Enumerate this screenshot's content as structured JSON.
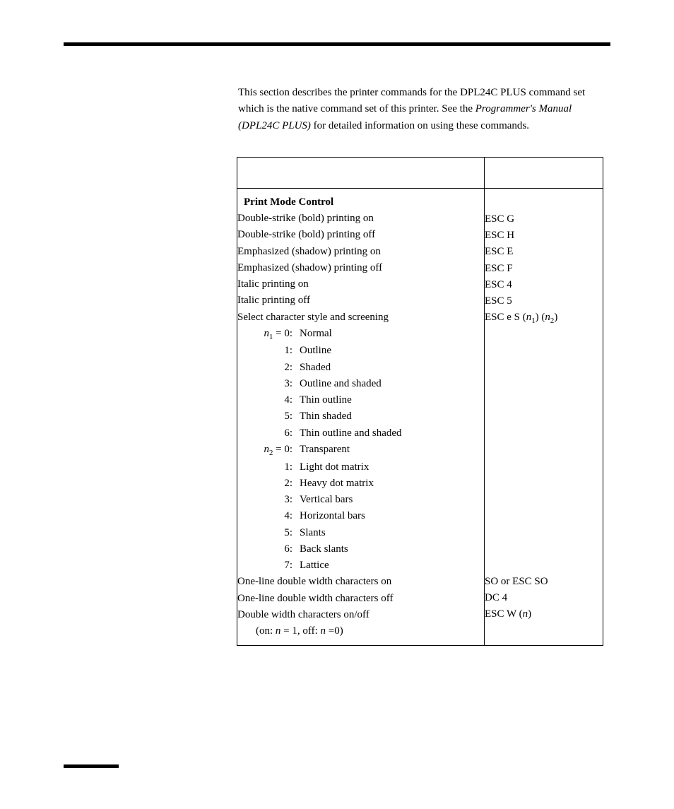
{
  "intro": {
    "part1": "This section describes the printer commands for the DPL24C PLUS command set which is the native command set of this printer.  See the ",
    "italic": "Programmer's Manual (DPL24C PLUS)",
    "part2": " for detailed information on using these commands."
  },
  "section_header": "Print Mode Control",
  "rows": [
    {
      "func": "Double-strike (bold) printing on",
      "cmd": "ESC G"
    },
    {
      "func": "Double-strike (bold) printing off",
      "cmd": "ESC H"
    },
    {
      "func": "Emphasized (shadow) printing on",
      "cmd": "ESC E"
    },
    {
      "func": "Emphasized (shadow) printing off",
      "cmd": "ESC F"
    },
    {
      "func": "Italic printing on",
      "cmd": "ESC 4"
    },
    {
      "func": "Italic printing off",
      "cmd": "ESC 5"
    }
  ],
  "style_row": {
    "func": "Select character style and screening",
    "cmd_prefix": "ESC e S (",
    "cmd_n1": "n",
    "cmd_sub1": "1",
    "cmd_mid": ") (",
    "cmd_n2": "n",
    "cmd_sub2": "2",
    "cmd_suffix": ")"
  },
  "n1_label": {
    "var": "n",
    "sub": "1",
    "eq": " = 0:"
  },
  "n1_items": [
    {
      "k": "",
      "v": "Normal"
    },
    {
      "k": "1:",
      "v": "Outline"
    },
    {
      "k": "2:",
      "v": "Shaded"
    },
    {
      "k": "3:",
      "v": "Outline and shaded"
    },
    {
      "k": "4:",
      "v": "Thin outline"
    },
    {
      "k": "5:",
      "v": "Thin shaded"
    },
    {
      "k": "6:",
      "v": "Thin outline and shaded"
    }
  ],
  "n2_label": {
    "var": "n",
    "sub": "2",
    "eq": " = 0:"
  },
  "n2_items": [
    {
      "k": "",
      "v": "Transparent"
    },
    {
      "k": "1:",
      "v": "Light dot matrix"
    },
    {
      "k": "2:",
      "v": "Heavy dot matrix"
    },
    {
      "k": "3:",
      "v": "Vertical bars"
    },
    {
      "k": "4:",
      "v": "Horizontal bars"
    },
    {
      "k": "5:",
      "v": "Slants"
    },
    {
      "k": "6:",
      "v": "Back slants"
    },
    {
      "k": "7:",
      "v": "Lattice"
    }
  ],
  "tail_rows": [
    {
      "func": "One-line double width characters on",
      "cmd": "SO or ESC SO"
    },
    {
      "func": "One-line double width characters off",
      "cmd": "DC 4"
    }
  ],
  "dw_row": {
    "func": "Double width characters on/off",
    "cmd_prefix": "ESC W  (",
    "cmd_n": "n",
    "cmd_suffix": ")"
  },
  "dw_note": {
    "a": "(on: ",
    "n1": "n",
    "b": " = 1, off: ",
    "n2": "n",
    "c": " =0)"
  }
}
